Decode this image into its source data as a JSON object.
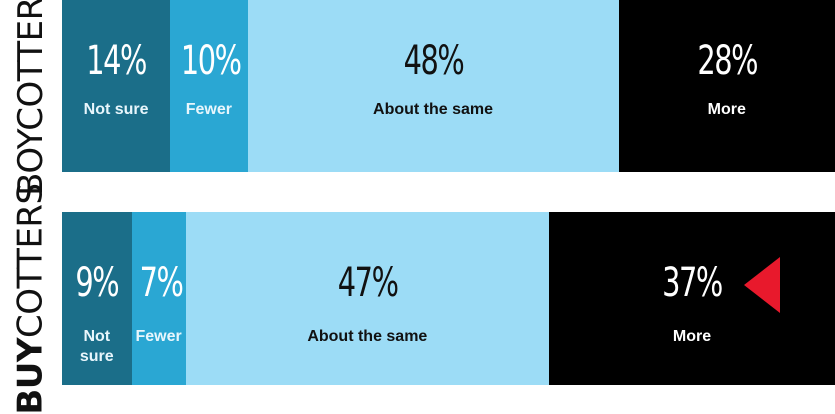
{
  "chart_data": [
    {
      "type": "bar",
      "orientation": "horizontal-stacked",
      "row_label": {
        "bold": "",
        "regular": "BOYCOTTERS"
      },
      "segments": [
        {
          "label": "Not sure",
          "value": 14,
          "display": "14%",
          "color": "#1b6e89",
          "text_color": "#ffffff"
        },
        {
          "label": "Fewer",
          "value": 10,
          "display": "10%",
          "color": "#2aa7d3",
          "text_color": "#ffffff"
        },
        {
          "label": "About the same",
          "value": 48,
          "display": "48%",
          "color": "#9cdcf6",
          "text_color": "#111111"
        },
        {
          "label": "More",
          "value": 28,
          "display": "28%",
          "color": "#000000",
          "text_color": "#ffffff"
        }
      ],
      "highlight": null
    },
    {
      "type": "bar",
      "orientation": "horizontal-stacked",
      "row_label": {
        "bold": "BUY",
        "regular": "COTTERS"
      },
      "segments": [
        {
          "label": "Not sure",
          "value": 9,
          "display": "9%",
          "color": "#1b6e89",
          "text_color": "#ffffff"
        },
        {
          "label": "Fewer",
          "value": 7,
          "display": "7%",
          "color": "#2aa7d3",
          "text_color": "#ffffff"
        },
        {
          "label": "About the same",
          "value": 47,
          "display": "47%",
          "color": "#9cdcf6",
          "text_color": "#111111"
        },
        {
          "label": "More",
          "value": 37,
          "display": "37%",
          "color": "#000000",
          "text_color": "#ffffff"
        }
      ],
      "highlight": {
        "segment": "More",
        "marker": "triangle-left",
        "color": "#e8192c"
      }
    }
  ]
}
